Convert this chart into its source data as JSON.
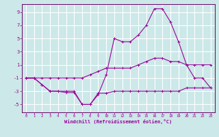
{
  "background_color": "#cce8e8",
  "grid_color": "#ffffff",
  "line_color": "#990099",
  "xlabel": "Windchill (Refroidissement éolien,°C)",
  "xlim": [
    -0.5,
    23.5
  ],
  "ylim": [
    -6.2,
    10.2
  ],
  "yticks": [
    -5,
    -3,
    -1,
    1,
    3,
    5,
    7,
    9
  ],
  "xticks": [
    0,
    1,
    2,
    3,
    4,
    5,
    6,
    7,
    8,
    9,
    10,
    11,
    12,
    13,
    14,
    15,
    16,
    17,
    18,
    19,
    20,
    21,
    22,
    23
  ],
  "line1_x": [
    0,
    1,
    2,
    3,
    4,
    5,
    6,
    7,
    8,
    9,
    10,
    11,
    12,
    13,
    14,
    15,
    16,
    17,
    18,
    19,
    20,
    21,
    22,
    23
  ],
  "line1_y": [
    -1,
    -1,
    -2,
    -3,
    -3,
    -3.2,
    -3.2,
    -5,
    -5,
    -3.3,
    -3.3,
    -3,
    -3,
    -3,
    -3,
    -3,
    -3,
    -3,
    -3,
    -3,
    -2.5,
    -2.5,
    -2.5,
    -2.5
  ],
  "line2_x": [
    0,
    1,
    2,
    3,
    4,
    5,
    6,
    7,
    8,
    9,
    10,
    11,
    12,
    13,
    14,
    15,
    16,
    17,
    18,
    19,
    20,
    21,
    22,
    23
  ],
  "line2_y": [
    -1,
    -1,
    -1,
    -1,
    -1,
    -1,
    -1,
    -1,
    -0.5,
    0,
    0.5,
    0.5,
    0.5,
    0.5,
    1,
    1.5,
    2,
    2,
    1.5,
    1.5,
    1,
    1,
    1,
    1
  ],
  "line3_x": [
    0,
    1,
    2,
    3,
    4,
    5,
    6,
    7,
    8,
    9,
    10,
    11,
    12,
    13,
    14,
    15,
    16,
    17,
    18,
    19,
    20,
    21,
    22,
    23
  ],
  "line3_y": [
    -1,
    -1,
    -2,
    -3,
    -3,
    -3,
    -3,
    -5,
    -5,
    -3.5,
    -0.5,
    5,
    4.5,
    4.5,
    5.5,
    7,
    9.5,
    9.5,
    7.5,
    4.5,
    1,
    -1,
    -1,
    -2.5
  ],
  "title_color": "#660066",
  "spine_color": "#660066"
}
